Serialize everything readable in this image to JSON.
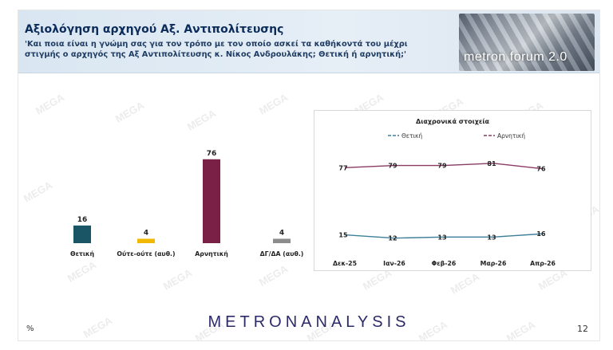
{
  "header": {
    "title": "Αξιολόγηση αρχηγού Αξ. Αντιπολίτευσης",
    "subtitle": "'Και ποια είναι η γνώμη σας για τον τρόπο με τον οποίο ασκεί τα καθήκοντά του μέχρι στιγμής ο αρχηγός της Αξ Αντιπολίτευσης κ. Νίκος Ανδρουλάκης; Θετική ή αρνητική;'",
    "logo_text": "metron forum 2.0"
  },
  "footer": {
    "brand": "METRONANALYSIS",
    "unit": "%",
    "page_number": "12"
  },
  "watermark_text": "MEGA",
  "colors": {
    "positive": "#1a5566",
    "neutral": "#f2b800",
    "negative": "#7a1f45",
    "dontknow": "#8c8c8c",
    "trend_positive": "#3d7f99",
    "trend_negative": "#8a3a63"
  },
  "chart_data": [
    {
      "type": "bar",
      "categories": [
        "Θετική",
        "Ούτε-ούτε (αυθ.)",
        "Αρνητική",
        "ΔΓ/ΔΑ (αυθ.)"
      ],
      "values": [
        16,
        4,
        76,
        4
      ],
      "ylim": [
        0,
        85
      ]
    },
    {
      "type": "line",
      "title": "Διαχρονικά στοιχεία",
      "categories": [
        "Δεκ-25",
        "Ιαν-26",
        "Φεβ-26",
        "Μαρ-26",
        "Απρ-26"
      ],
      "series": [
        {
          "name": "Θετική",
          "values": [
            15,
            12,
            13,
            13,
            16
          ]
        },
        {
          "name": "Αρνητική",
          "values": [
            77,
            79,
            79,
            81,
            76
          ]
        }
      ],
      "ylim": [
        0,
        100
      ],
      "legend": "top"
    }
  ]
}
